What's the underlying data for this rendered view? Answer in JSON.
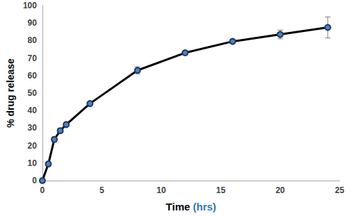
{
  "chart_data": {
    "type": "line",
    "x_label": "Time (hrs)",
    "y_label": "% drug release",
    "xlim": [
      0,
      25
    ],
    "xticks": [
      0,
      5,
      10,
      15,
      20,
      25
    ],
    "ylim": [
      0,
      100
    ],
    "yticks": [
      0,
      10,
      20,
      30,
      40,
      50,
      60,
      70,
      80,
      90,
      100
    ],
    "grid": false,
    "series": [
      {
        "name": "Drug release",
        "color": "#000000",
        "marker": "circle",
        "line_style": "solid",
        "x": [
          0,
          0.5,
          1,
          1.5,
          2,
          4,
          8,
          12,
          16,
          20,
          24
        ],
        "values": [
          0,
          9.5,
          23.5,
          28.5,
          32,
          44,
          63,
          73,
          79.5,
          83.5,
          87.5
        ],
        "errors": [
          0,
          0.8,
          1.5,
          1.2,
          1,
          1,
          2,
          1,
          1,
          2.5,
          6
        ]
      }
    ]
  }
}
